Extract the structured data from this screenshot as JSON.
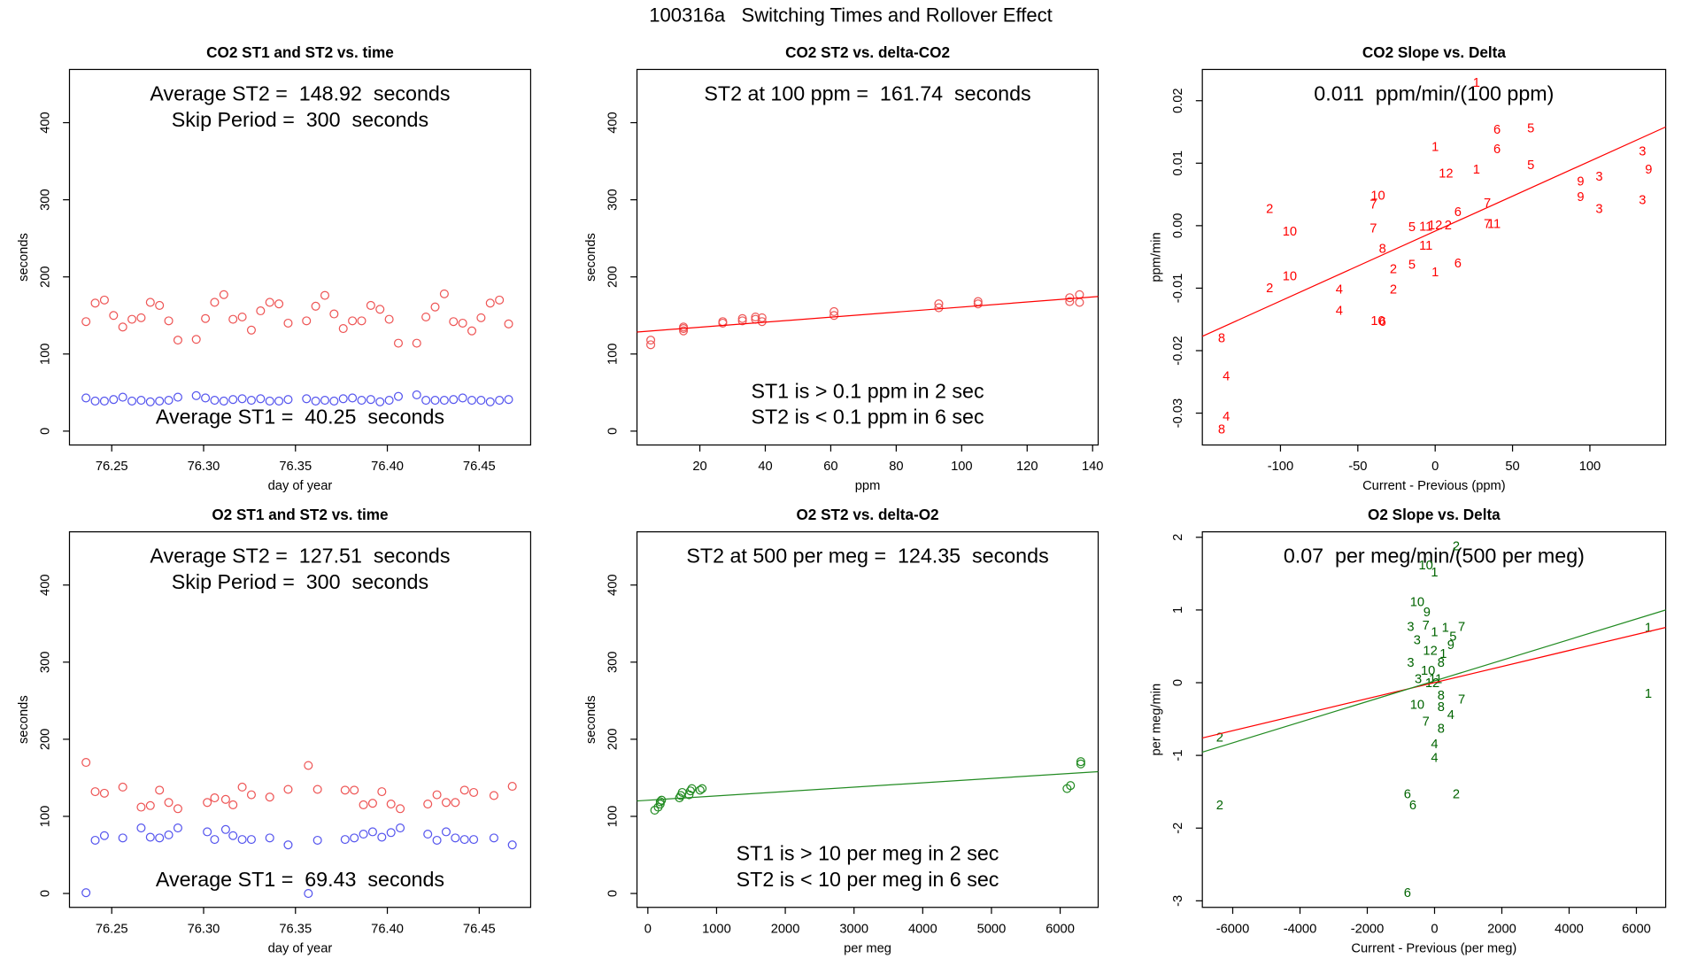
{
  "title": "100316a   Switching Times and Rollover Effect",
  "chart_data": [
    {
      "type": "scatter",
      "title": "CO2 ST1 and ST2 vs. time",
      "x_label": "day of year",
      "y_label": "seconds",
      "xlim": [
        76.227,
        76.478
      ],
      "ylim": [
        -18,
        469
      ],
      "xticks": [
        76.25,
        {
          "value": 76.3,
          "label": "76.30"
        },
        76.35,
        {
          "value": 76.4,
          "label": "76.40"
        },
        76.45
      ],
      "yticks": [
        0,
        100,
        200,
        300,
        400
      ],
      "annotations_top": [
        "Average ST2 =  148.92  seconds",
        "Skip Period =  300  seconds"
      ],
      "annotations_bottom": [
        "Average ST1 =  40.25  seconds"
      ],
      "series": [
        {
          "style": "circle",
          "color": "#ee5555",
          "x": [
            76.236,
            76.241,
            76.246,
            76.251,
            76.256,
            76.261,
            76.266,
            76.271,
            76.276,
            76.281,
            76.286,
            76.296,
            76.301,
            76.306,
            76.311,
            76.316,
            76.321,
            76.326,
            76.331,
            76.336,
            76.341,
            76.346,
            76.356,
            76.361,
            76.366,
            76.371,
            76.376,
            76.381,
            76.386,
            76.391,
            76.396,
            76.401,
            76.406,
            76.416,
            76.421,
            76.426,
            76.431,
            76.436,
            76.441,
            76.446,
            76.451,
            76.456,
            76.461,
            76.466
          ],
          "values": [
            142,
            166,
            170,
            150,
            135,
            145,
            147,
            167,
            163,
            143,
            118,
            119,
            146,
            167,
            177,
            145,
            148,
            131,
            156,
            167,
            165,
            140,
            143,
            162,
            176,
            152,
            133,
            143,
            143,
            163,
            158,
            145,
            114,
            114,
            148,
            161,
            178,
            142,
            140,
            130,
            147,
            166,
            170,
            139
          ]
        },
        {
          "style": "circle",
          "color": "#5555ee",
          "x": [
            76.236,
            76.241,
            76.246,
            76.251,
            76.256,
            76.261,
            76.266,
            76.271,
            76.276,
            76.281,
            76.286,
            76.296,
            76.301,
            76.306,
            76.311,
            76.316,
            76.321,
            76.326,
            76.331,
            76.336,
            76.341,
            76.346,
            76.356,
            76.361,
            76.366,
            76.371,
            76.376,
            76.381,
            76.386,
            76.391,
            76.396,
            76.401,
            76.406,
            76.416,
            76.421,
            76.426,
            76.431,
            76.436,
            76.441,
            76.446,
            76.451,
            76.456,
            76.461,
            76.466
          ],
          "values": [
            43,
            39,
            39,
            41,
            44,
            39,
            40,
            38,
            39,
            40,
            44,
            46,
            43,
            40,
            39,
            41,
            42,
            40,
            42,
            39,
            39,
            41,
            42,
            39,
            40,
            39,
            42,
            43,
            40,
            41,
            38,
            40,
            45,
            47,
            40,
            40,
            40,
            41,
            43,
            40,
            40,
            38,
            40,
            41
          ]
        }
      ]
    },
    {
      "type": "scatter",
      "title": "CO2 ST2 vs. delta-CO2",
      "x_label": "ppm",
      "y_label": "seconds",
      "xlim": [
        0.8,
        141.7
      ],
      "ylim": [
        -18,
        469
      ],
      "xticks": [
        20,
        40,
        60,
        80,
        100,
        120,
        140
      ],
      "yticks": [
        0,
        100,
        200,
        300,
        400
      ],
      "annotations_top": [
        "ST2 at 100 ppm =  161.74  seconds"
      ],
      "annotations_bottom": [
        "ST1 is > 0.1 ppm in 2 sec",
        "ST2 is < 0.1 ppm in 6 sec"
      ],
      "series": [
        {
          "style": "circle",
          "color": "#ee5555",
          "x": [
            5,
            5,
            15,
            15,
            15,
            27,
            27,
            33,
            33,
            37,
            37,
            39,
            39,
            61,
            61,
            93,
            93,
            105,
            105,
            133,
            133,
            136,
            136
          ],
          "values": [
            112,
            118,
            130,
            135,
            133,
            140,
            142,
            143,
            146,
            145,
            148,
            142,
            147,
            150,
            155,
            160,
            165,
            165,
            168,
            168,
            173,
            167,
            177
          ]
        },
        {
          "style": "line",
          "color": "#ff0000",
          "x": [
            0.8,
            141.7
          ],
          "values": [
            128.5,
            174.5
          ]
        }
      ]
    },
    {
      "type": "scatter",
      "title": "CO2 Slope vs. Delta",
      "x_label": "Current - Previous (ppm)",
      "y_label": "ppm/min",
      "xlim": [
        -150.5,
        149
      ],
      "ylim": [
        -0.0351,
        0.025
      ],
      "xticks": [
        -100,
        -50,
        0,
        50,
        100
      ],
      "yticks": [
        -0.03,
        -0.02,
        -0.01,
        {
          "value": 0,
          "label": "0.00"
        },
        0.01,
        0.02
      ],
      "annotations_top": [
        "0.011  ppm/min/(100 ppm)"
      ],
      "annotations_bottom": [],
      "series": [
        {
          "style": "text",
          "color": "#ff0000",
          "labels": [
            "1",
            "6",
            "5",
            "1",
            "6",
            "12",
            "1",
            "5",
            "3",
            "3",
            "9",
            "9",
            "9",
            "3",
            "3",
            "10",
            "7",
            "2",
            "10",
            "7",
            "5",
            "11",
            "12",
            "2",
            "6",
            "7",
            "7",
            "11",
            "11",
            "8",
            "2",
            "5",
            "1",
            "6",
            "10",
            "2",
            "4",
            "2",
            "4",
            "10",
            "6",
            "8",
            "4",
            "4",
            "8"
          ],
          "x": [
            26.7,
            40,
            61.8,
            0,
            40,
            7,
            26.7,
            61.8,
            134,
            106,
            94,
            138,
            94,
            106,
            134,
            -37,
            -40,
            -107,
            -94,
            -40,
            -15,
            -6,
            0,
            8.4,
            14.7,
            33.7,
            33.7,
            38,
            -6,
            -34,
            -27,
            -15,
            0,
            14.7,
            -94,
            -107,
            -62,
            -27,
            -62,
            -37,
            -34,
            -138,
            -135,
            -135,
            -138
          ],
          "values": [
            0.0228,
            0.0153,
            0.0155,
            0.0125,
            0.0122,
            0.0083,
            0.0089,
            0.0096,
            0.0118,
            0.0078,
            0.007,
            0.0089,
            0.0045,
            0.0026,
            0.004,
            0.0047,
            0.0033,
            0.0026,
            -0.001,
            -0.0005,
            -0.0003,
            -0.0002,
            0,
            0,
            0.0021,
            0.0035,
            0.0002,
            0.0002,
            -0.0033,
            -0.0038,
            -0.007,
            -0.0063,
            -0.0075,
            -0.0061,
            -0.0082,
            -0.0101,
            -0.0103,
            -0.0103,
            -0.0137,
            -0.0153,
            -0.0155,
            -0.0181,
            -0.0242,
            -0.0306,
            -0.0327
          ]
        },
        {
          "style": "line",
          "color": "#ff0000",
          "x": [
            -150.5,
            149
          ],
          "values": [
            -0.0177,
            0.0158
          ]
        }
      ]
    },
    {
      "type": "scatter",
      "title": "O2 ST1 and ST2 vs. time",
      "x_label": "day of year",
      "y_label": "seconds",
      "xlim": [
        76.227,
        76.478
      ],
      "ylim": [
        -18,
        469
      ],
      "xticks": [
        76.25,
        {
          "value": 76.3,
          "label": "76.30"
        },
        76.35,
        {
          "value": 76.4,
          "label": "76.40"
        },
        76.45
      ],
      "yticks": [
        0,
        100,
        200,
        300,
        400
      ],
      "annotations_top": [
        "Average ST2 =  127.51  seconds",
        "Skip Period =  300  seconds"
      ],
      "annotations_bottom": [
        "Average ST1 =  69.43  seconds"
      ],
      "series": [
        {
          "style": "circle",
          "color": "#ee5555",
          "x": [
            76.236,
            76.241,
            76.246,
            76.256,
            76.266,
            76.271,
            76.276,
            76.281,
            76.286,
            76.302,
            76.306,
            76.312,
            76.316,
            76.321,
            76.326,
            76.336,
            76.346,
            76.357,
            76.362,
            76.377,
            76.382,
            76.387,
            76.392,
            76.397,
            76.402,
            76.407,
            76.422,
            76.427,
            76.432,
            76.437,
            76.442,
            76.447,
            76.458,
            76.468
          ],
          "values": [
            170,
            132,
            130,
            138,
            112,
            114,
            134,
            118,
            110,
            118,
            124,
            122,
            115,
            138,
            128,
            125,
            135,
            166,
            135,
            134,
            134,
            115,
            117,
            132,
            116,
            110,
            116,
            128,
            118,
            118,
            134,
            131,
            127,
            139
          ]
        },
        {
          "style": "circle",
          "color": "#5555ee",
          "x": [
            76.236,
            76.241,
            76.246,
            76.256,
            76.266,
            76.271,
            76.276,
            76.281,
            76.286,
            76.302,
            76.306,
            76.312,
            76.316,
            76.321,
            76.326,
            76.336,
            76.346,
            76.357,
            76.362,
            76.377,
            76.382,
            76.387,
            76.392,
            76.397,
            76.402,
            76.407,
            76.422,
            76.427,
            76.432,
            76.437,
            76.442,
            76.447,
            76.458,
            76.468
          ],
          "values": [
            1,
            69,
            75,
            72,
            85,
            73,
            72,
            76,
            85,
            80,
            70,
            83,
            75,
            70,
            70,
            72,
            63,
            0,
            69,
            70,
            72,
            77,
            80,
            73,
            79,
            85,
            77,
            69,
            80,
            72,
            70,
            70,
            72,
            63
          ]
        }
      ]
    },
    {
      "type": "scatter",
      "title": "O2 ST2 vs. delta-O2",
      "x_label": "per meg",
      "y_label": "seconds",
      "xlim": [
        -158,
        6553
      ],
      "ylim": [
        -18,
        469
      ],
      "xticks": [
        0,
        1000,
        2000,
        3000,
        4000,
        5000,
        6000
      ],
      "yticks": [
        0,
        100,
        200,
        300,
        400
      ],
      "annotations_top": [
        "ST2 at 500 per meg =  124.35  seconds"
      ],
      "annotations_bottom": [
        "ST1 is > 10 per meg in 2 sec",
        "ST2 is < 10 per meg in 6 sec"
      ],
      "series": [
        {
          "style": "circle",
          "color": "#228b22",
          "x": [
            100,
            150,
            180,
            180,
            200,
            460,
            480,
            500,
            600,
            620,
            640,
            760,
            790,
            6100,
            6150,
            6300,
            6300
          ],
          "values": [
            108,
            112,
            116,
            119,
            121,
            124,
            127,
            131,
            128,
            133,
            136,
            134,
            136,
            136,
            140,
            168,
            171
          ]
        },
        {
          "style": "line",
          "color": "#228b22",
          "x": [
            -158,
            6553
          ],
          "values": [
            120,
            158
          ]
        }
      ]
    },
    {
      "type": "scatter",
      "title": "O2 Slope vs. Delta",
      "x_label": "Current - Previous (per meg)",
      "y_label": "per meg/min",
      "xlim": [
        -6903,
        6871
      ],
      "ylim": [
        -3.09,
        2.075
      ],
      "xticks": [
        -6000,
        -4000,
        -2000,
        0,
        2000,
        4000,
        6000
      ],
      "yticks": [
        -3,
        -2,
        -1,
        0,
        1,
        2
      ],
      "annotations_top": [
        "0.07  per meg/min/(500 per meg)"
      ],
      "annotations_bottom": [],
      "series": [
        {
          "style": "text",
          "color": "#006400",
          "labels": [
            "2",
            "10",
            "1",
            "10",
            "9",
            "3",
            "7",
            "1",
            "1",
            "7",
            "3",
            "5",
            "9",
            "12",
            "1",
            "3",
            "8",
            "10",
            "3",
            "11",
            "12",
            "7",
            "8",
            "10",
            "8",
            "4",
            "7",
            "8",
            "4",
            "4",
            "1",
            "1",
            "2",
            "2",
            "6",
            "6",
            "2",
            "6"
          ],
          "x": [
            645,
            -258,
            0,
            -516,
            -226,
            -710,
            -258,
            0,
            323,
            806,
            -516,
            548,
            484,
            -129,
            258,
            -710,
            194,
            -194,
            -484,
            32,
            -65,
            806,
            194,
            -516,
            194,
            484,
            -258,
            194,
            0,
            0,
            6355,
            6355,
            -6387,
            -6387,
            -806,
            -645,
            645,
            -806
          ],
          "values": [
            1.87,
            1.61,
            1.51,
            1.1,
            0.96,
            0.76,
            0.78,
            0.69,
            0.75,
            0.76,
            0.58,
            0.63,
            0.51,
            0.43,
            0.39,
            0.27,
            0.27,
            0.16,
            0.04,
            0.04,
            -0.01,
            -0.24,
            -0.18,
            -0.31,
            -0.34,
            -0.45,
            -0.54,
            -0.64,
            -0.85,
            -1.04,
            0.75,
            -0.16,
            -0.76,
            -1.69,
            -1.54,
            -1.69,
            -1.54,
            -2.9
          ]
        },
        {
          "style": "line",
          "color": "#ff0000",
          "x": [
            -6903,
            6871
          ],
          "values": [
            -0.76,
            0.76
          ]
        },
        {
          "style": "line",
          "color": "#228b22",
          "x": [
            -6903,
            6871
          ],
          "values": [
            -0.955,
            1.0
          ]
        }
      ]
    }
  ]
}
